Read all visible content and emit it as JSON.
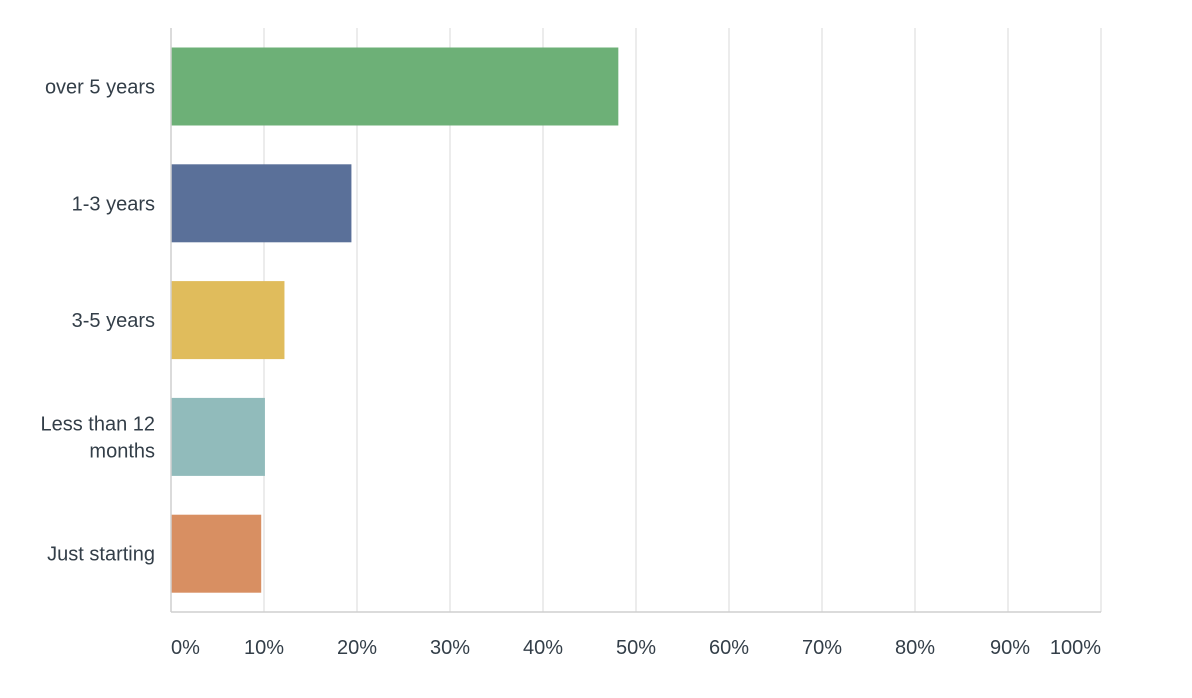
{
  "chart_data": {
    "type": "bar",
    "orientation": "horizontal",
    "categories": [
      [
        "over 5 years"
      ],
      [
        "1-3 years"
      ],
      [
        "3-5 years"
      ],
      [
        "Less than 12",
        "months"
      ],
      [
        "Just starting"
      ]
    ],
    "values": [
      48.1,
      19.4,
      12.2,
      10.1,
      9.7
    ],
    "colors": [
      "#6db077",
      "#5a7099",
      "#e0bc5c",
      "#91bbbb",
      "#d88f62"
    ],
    "xlim": [
      0,
      100
    ],
    "xticks": [
      "0%",
      "10%",
      "20%",
      "30%",
      "40%",
      "50%",
      "60%",
      "70%",
      "80%",
      "90%",
      "100%"
    ],
    "grid": true,
    "title": "",
    "xlabel": "",
    "ylabel": ""
  }
}
